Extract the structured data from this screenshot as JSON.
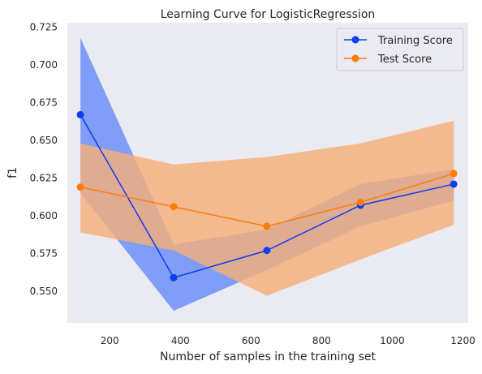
{
  "chart_data": {
    "type": "line",
    "title": "Learning Curve for LogisticRegression",
    "xlabel": "Number of samples in the training set",
    "ylabel": "f1",
    "xlim": [
      80,
      1215
    ],
    "ylim": [
      0.529,
      0.728
    ],
    "xticks": [
      200,
      400,
      600,
      800,
      1000,
      1200
    ],
    "yticks": [
      0.55,
      0.575,
      0.6,
      0.625,
      0.65,
      0.675,
      0.7,
      0.725
    ],
    "ytick_labels": [
      "0.550",
      "0.575",
      "0.600",
      "0.625",
      "0.650",
      "0.675",
      "0.700",
      "0.725"
    ],
    "grid": false,
    "legend_position": "top-right",
    "x": [
      117,
      381,
      645,
      910,
      1174
    ],
    "series": [
      {
        "name": "Training Score",
        "color": "#0d3ef2",
        "band_color": "#7a99f7",
        "values": [
          0.667,
          0.559,
          0.577,
          0.607,
          0.621
        ],
        "lower": [
          0.615,
          0.537,
          0.564,
          0.593,
          0.61
        ],
        "upper": [
          0.718,
          0.581,
          0.591,
          0.621,
          0.631
        ]
      },
      {
        "name": "Test Score",
        "color": "#ff7c0a",
        "band_color": "#f5b07a",
        "values": [
          0.619,
          0.606,
          0.593,
          0.609,
          0.628
        ],
        "lower": [
          0.589,
          0.577,
          0.547,
          0.571,
          0.594
        ],
        "upper": [
          0.648,
          0.634,
          0.639,
          0.648,
          0.663
        ]
      }
    ]
  }
}
